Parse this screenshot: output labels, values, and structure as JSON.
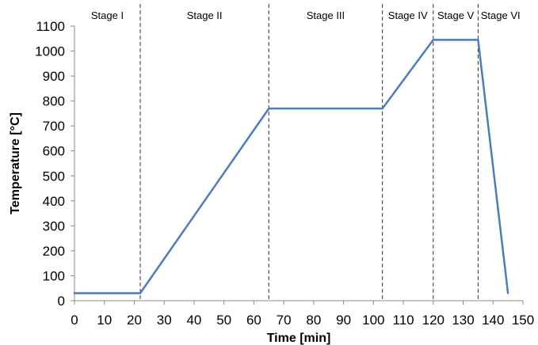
{
  "chart_data": {
    "type": "line",
    "title": "",
    "xlabel": "Time [min]",
    "ylabel": "Temperature [°C]",
    "xlim": [
      0,
      150
    ],
    "ylim": [
      0,
      1100
    ],
    "x_ticks": [
      0,
      10,
      20,
      30,
      40,
      50,
      60,
      70,
      80,
      90,
      100,
      110,
      120,
      130,
      140,
      150
    ],
    "y_ticks": [
      0,
      100,
      200,
      300,
      400,
      500,
      600,
      700,
      800,
      900,
      1000,
      1100
    ],
    "grid": false,
    "legend": "none",
    "series": [
      {
        "color": "#4a7ebb",
        "points": [
          [
            0,
            30
          ],
          [
            22,
            30
          ],
          [
            65,
            770
          ],
          [
            103,
            770
          ],
          [
            120,
            1045
          ],
          [
            135,
            1045
          ],
          [
            145,
            30
          ]
        ]
      }
    ],
    "stage_boundaries": [
      22,
      65,
      103,
      120,
      135
    ],
    "stages": [
      {
        "label": "Stage I",
        "start": 0,
        "end": 22
      },
      {
        "label": "Stage II",
        "start": 22,
        "end": 65
      },
      {
        "label": "Stage III",
        "start": 65,
        "end": 103
      },
      {
        "label": "Stage IV",
        "start": 103,
        "end": 120
      },
      {
        "label": "Stage V",
        "start": 120,
        "end": 135
      },
      {
        "label": "Stage VI",
        "start": 135,
        "end": 150
      }
    ]
  }
}
